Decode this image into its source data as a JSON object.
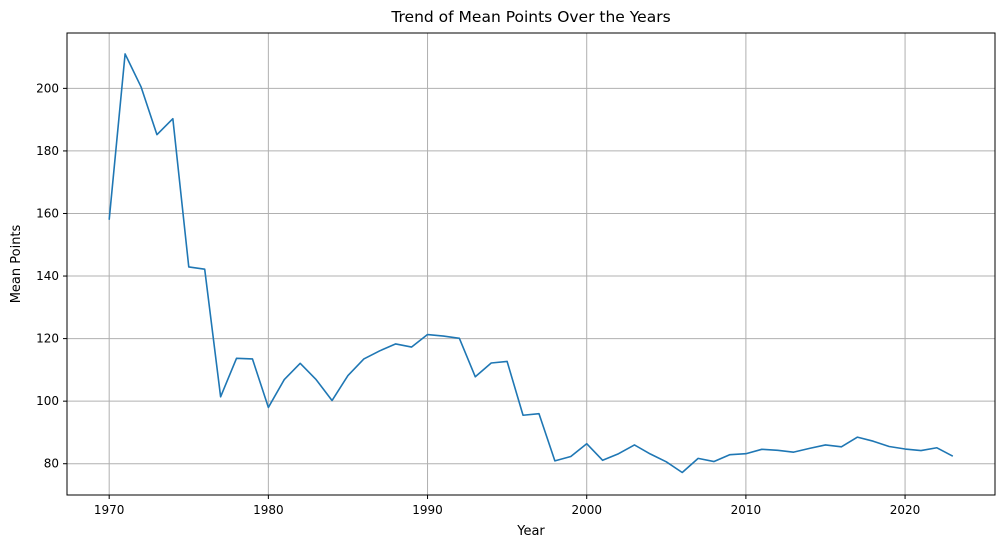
{
  "chart_data": {
    "type": "line",
    "title": "Trend of Mean Points Over the Years",
    "xlabel": "Year",
    "ylabel": "Mean Points",
    "xlim": [
      1967.35,
      2025.65
    ],
    "ylim": [
      70.0,
      217.7
    ],
    "xticks": [
      1970,
      1980,
      1990,
      2000,
      2010,
      2020
    ],
    "yticks": [
      80,
      100,
      120,
      140,
      160,
      180,
      200
    ],
    "grid": true,
    "line_color": "#1f77b4",
    "series": [
      {
        "x": [
          1970,
          1971,
          1972,
          1973,
          1974,
          1975,
          1976,
          1977,
          1978,
          1979,
          1980,
          1981,
          1982,
          1983,
          1984,
          1985,
          1986,
          1987,
          1988,
          1989,
          1990,
          1991,
          1992,
          1993,
          1994,
          1995,
          1996,
          1997,
          1998,
          1999,
          2000,
          2001,
          2002,
          2003,
          2004,
          2005,
          2006,
          2007,
          2008,
          2009,
          2010,
          2011,
          2012,
          2013,
          2014,
          2015,
          2016,
          2017,
          2018,
          2019,
          2020,
          2021,
          2022,
          2023
        ],
        "values": [
          158.0,
          211.0,
          200.5,
          185.2,
          190.3,
          142.9,
          142.2,
          101.4,
          113.7,
          113.5,
          98.0,
          106.9,
          112.1,
          106.9,
          100.2,
          108.2,
          113.5,
          116.1,
          118.3,
          117.3,
          121.3,
          120.8,
          120.1,
          107.8,
          112.2,
          112.7,
          95.5,
          96.0,
          80.9,
          82.3,
          86.4,
          81.1,
          83.2,
          86.0,
          83.1,
          80.6,
          77.2,
          81.7,
          80.7,
          82.9,
          83.2,
          84.6,
          84.3,
          83.7,
          84.9,
          86.0,
          85.4,
          88.5,
          87.2,
          85.5,
          84.7,
          84.2,
          85.1,
          82.4
        ]
      }
    ]
  }
}
